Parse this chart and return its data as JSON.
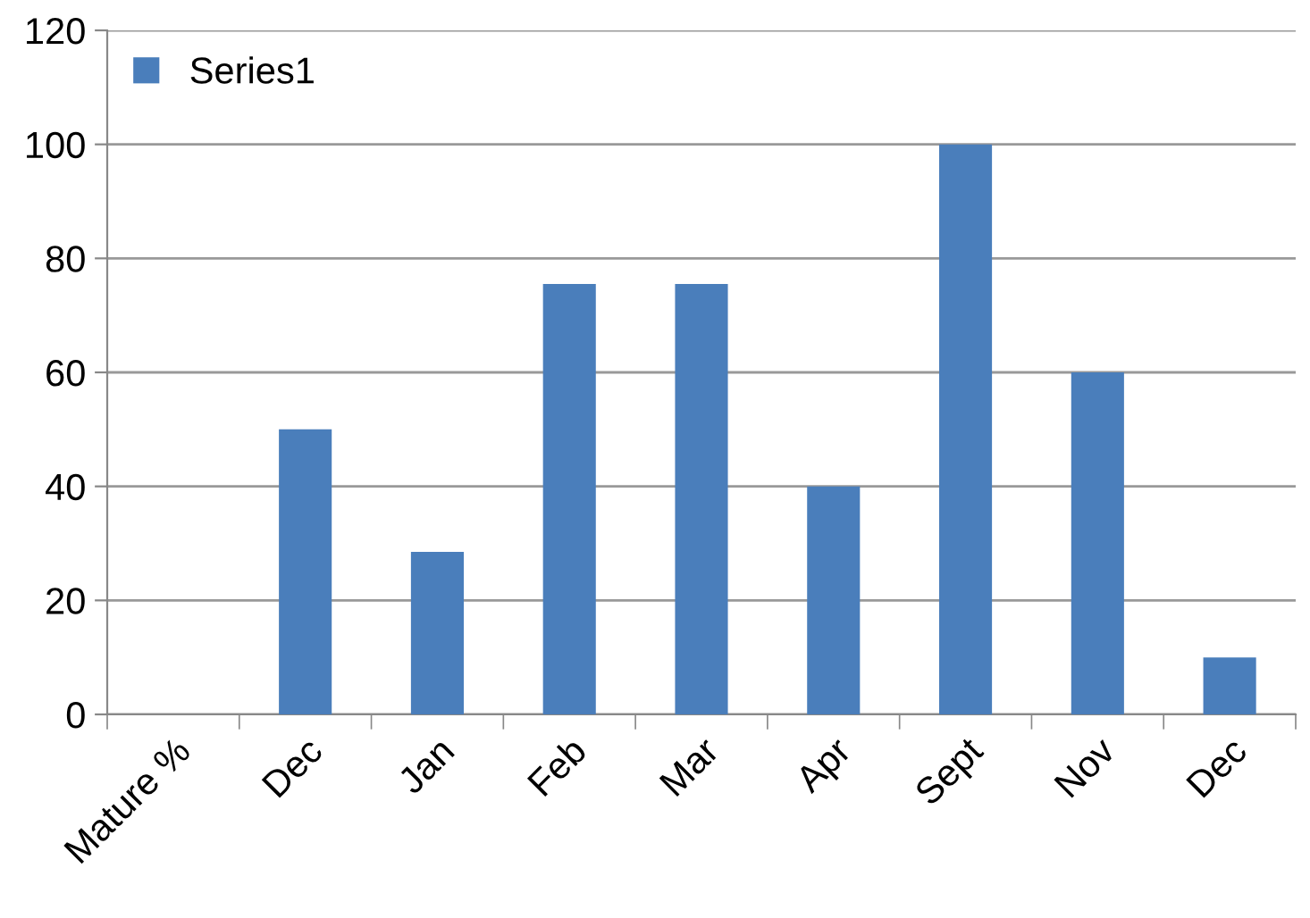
{
  "chart_data": {
    "type": "bar",
    "categories": [
      "Mature %",
      "Dec",
      "Jan",
      "Feb",
      "Mar",
      "Apr",
      "Sept",
      "Nov",
      "Dec"
    ],
    "series": [
      {
        "name": "Series1",
        "color": "#4a7ebb",
        "values": [
          null,
          50,
          28.5,
          75.5,
          75.5,
          40,
          100,
          60,
          10
        ]
      }
    ],
    "ylim": [
      0,
      120
    ],
    "yticks": [
      0,
      20,
      40,
      60,
      80,
      100,
      120
    ],
    "grid": "y",
    "legend": "top left"
  }
}
